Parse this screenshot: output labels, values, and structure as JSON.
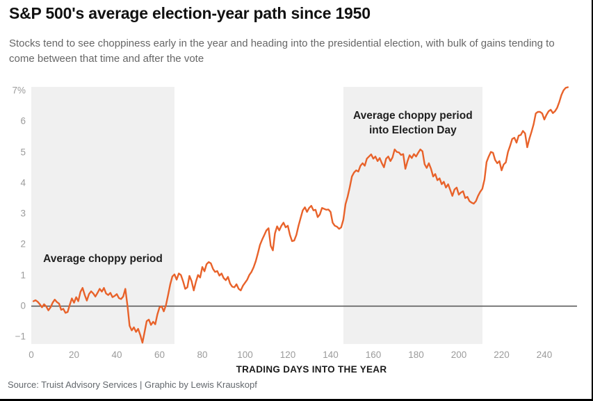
{
  "header": {
    "title": "S&P 500's average election-year path since 1950",
    "subtitle": "Stocks tend to see choppiness early in the year and heading into the presidential election, with bulk of gains tending to come between that time and after the vote"
  },
  "footer": {
    "source": "Source: Truist Advisory Services | Graphic by Lewis Krauskopf"
  },
  "colors": {
    "line": "#e8622a",
    "region_fill": "#f0f0f0",
    "baseline": "#4e4e4e",
    "tick_text": "#9b9b9b"
  },
  "chart_data": {
    "type": "line",
    "title": "S&P 500's average election-year path since 1950",
    "xlabel": "TRADING DAYS INTO THE YEAR",
    "ylabel": "",
    "y_unit": "%",
    "xlim": [
      0,
      255
    ],
    "ylim": [
      -1.25,
      7.12
    ],
    "grid": false,
    "legend_position": "none",
    "zero_baseline": 0,
    "x_ticks": [
      0,
      20,
      40,
      60,
      80,
      100,
      120,
      140,
      160,
      180,
      200,
      220,
      240
    ],
    "y_ticks": [
      {
        "value": -1,
        "label": "−1"
      },
      {
        "value": 0,
        "label": "0"
      },
      {
        "value": 1,
        "label": "1"
      },
      {
        "value": 2,
        "label": "2"
      },
      {
        "value": 3,
        "label": "3"
      },
      {
        "value": 4,
        "label": "4"
      },
      {
        "value": 5,
        "label": "5"
      },
      {
        "value": 6,
        "label": "6"
      },
      {
        "value": 7,
        "label": "7%"
      }
    ],
    "regions": [
      {
        "x0": 0,
        "x1": 67,
        "label": "Average choppy period",
        "label_lines": [
          "Average choppy period"
        ]
      },
      {
        "x0": 146,
        "x1": 211,
        "label": "Average choppy period into Election Day",
        "label_lines": [
          "Average choppy period",
          "into Election Day"
        ]
      }
    ],
    "series": [
      {
        "name": "S&P 500 average election-year % change",
        "color": "#e8622a",
        "x_start": 1,
        "x_step": 1,
        "values": [
          0.15,
          0.18,
          0.13,
          0.05,
          -0.05,
          0.05,
          -0.02,
          -0.15,
          -0.05,
          0.1,
          0.2,
          0.12,
          0.07,
          -0.13,
          -0.1,
          -0.23,
          -0.2,
          0.03,
          0.24,
          0.1,
          0.28,
          0.15,
          0.45,
          0.58,
          0.35,
          0.17,
          0.38,
          0.47,
          0.4,
          0.3,
          0.42,
          0.55,
          0.46,
          0.58,
          0.4,
          0.35,
          0.42,
          0.28,
          0.32,
          0.38,
          0.25,
          0.22,
          0.3,
          0.55,
          0.0,
          -0.65,
          -0.8,
          -0.7,
          -0.85,
          -0.75,
          -0.95,
          -1.2,
          -0.85,
          -0.5,
          -0.45,
          -0.62,
          -0.52,
          -0.6,
          -0.28,
          -0.05,
          -0.02,
          -0.18,
          0.02,
          0.35,
          0.7,
          0.95,
          1.02,
          0.85,
          1.05,
          1.0,
          0.8,
          0.55,
          0.6,
          0.97,
          0.8,
          0.5,
          0.78,
          1.0,
          0.92,
          1.26,
          1.12,
          1.35,
          1.42,
          1.38,
          1.2,
          1.1,
          1.13,
          0.98,
          1.05,
          0.9,
          0.83,
          0.94,
          0.72,
          0.62,
          0.6,
          0.7,
          0.55,
          0.5,
          0.65,
          0.75,
          0.85,
          1.0,
          1.1,
          1.25,
          1.45,
          1.7,
          1.98,
          2.15,
          2.3,
          2.45,
          2.52,
          1.95,
          1.8,
          2.35,
          2.58,
          2.45,
          2.6,
          2.7,
          2.55,
          2.6,
          2.3,
          2.1,
          2.12,
          2.3,
          2.6,
          2.85,
          3.1,
          3.2,
          3.05,
          3.18,
          3.25,
          3.1,
          3.12,
          2.88,
          2.97,
          3.18,
          3.15,
          3.12,
          3.13,
          3.05,
          2.7,
          2.6,
          2.57,
          2.5,
          2.55,
          2.8,
          3.3,
          3.55,
          3.85,
          4.2,
          4.33,
          4.4,
          4.36,
          4.55,
          4.63,
          4.55,
          4.78,
          4.85,
          4.92,
          4.78,
          4.85,
          4.7,
          4.8,
          4.63,
          4.5,
          4.78,
          4.85,
          4.7,
          4.82,
          5.08,
          5.0,
          4.98,
          4.9,
          4.93,
          4.45,
          4.7,
          4.89,
          4.8,
          4.93,
          4.85,
          4.97,
          5.08,
          5.02,
          4.6,
          4.48,
          4.63,
          4.45,
          4.2,
          4.28,
          4.08,
          4.14,
          3.95,
          4.03,
          3.84,
          3.95,
          3.76,
          3.57,
          3.78,
          3.84,
          3.61,
          3.68,
          3.72,
          3.5,
          3.54,
          3.4,
          3.35,
          3.32,
          3.4,
          3.57,
          3.7,
          3.8,
          4.1,
          4.67,
          4.85,
          5.0,
          4.97,
          4.74,
          4.63,
          4.7,
          4.4,
          4.59,
          4.66,
          5.0,
          5.2,
          5.42,
          5.46,
          5.3,
          5.53,
          5.55,
          5.68,
          5.6,
          5.15,
          5.42,
          5.65,
          5.9,
          6.25,
          6.3,
          6.3,
          6.25,
          6.05,
          6.2,
          6.32,
          6.37,
          6.26,
          6.32,
          6.43,
          6.62,
          6.85,
          7.0,
          7.08,
          7.1
        ]
      }
    ]
  }
}
